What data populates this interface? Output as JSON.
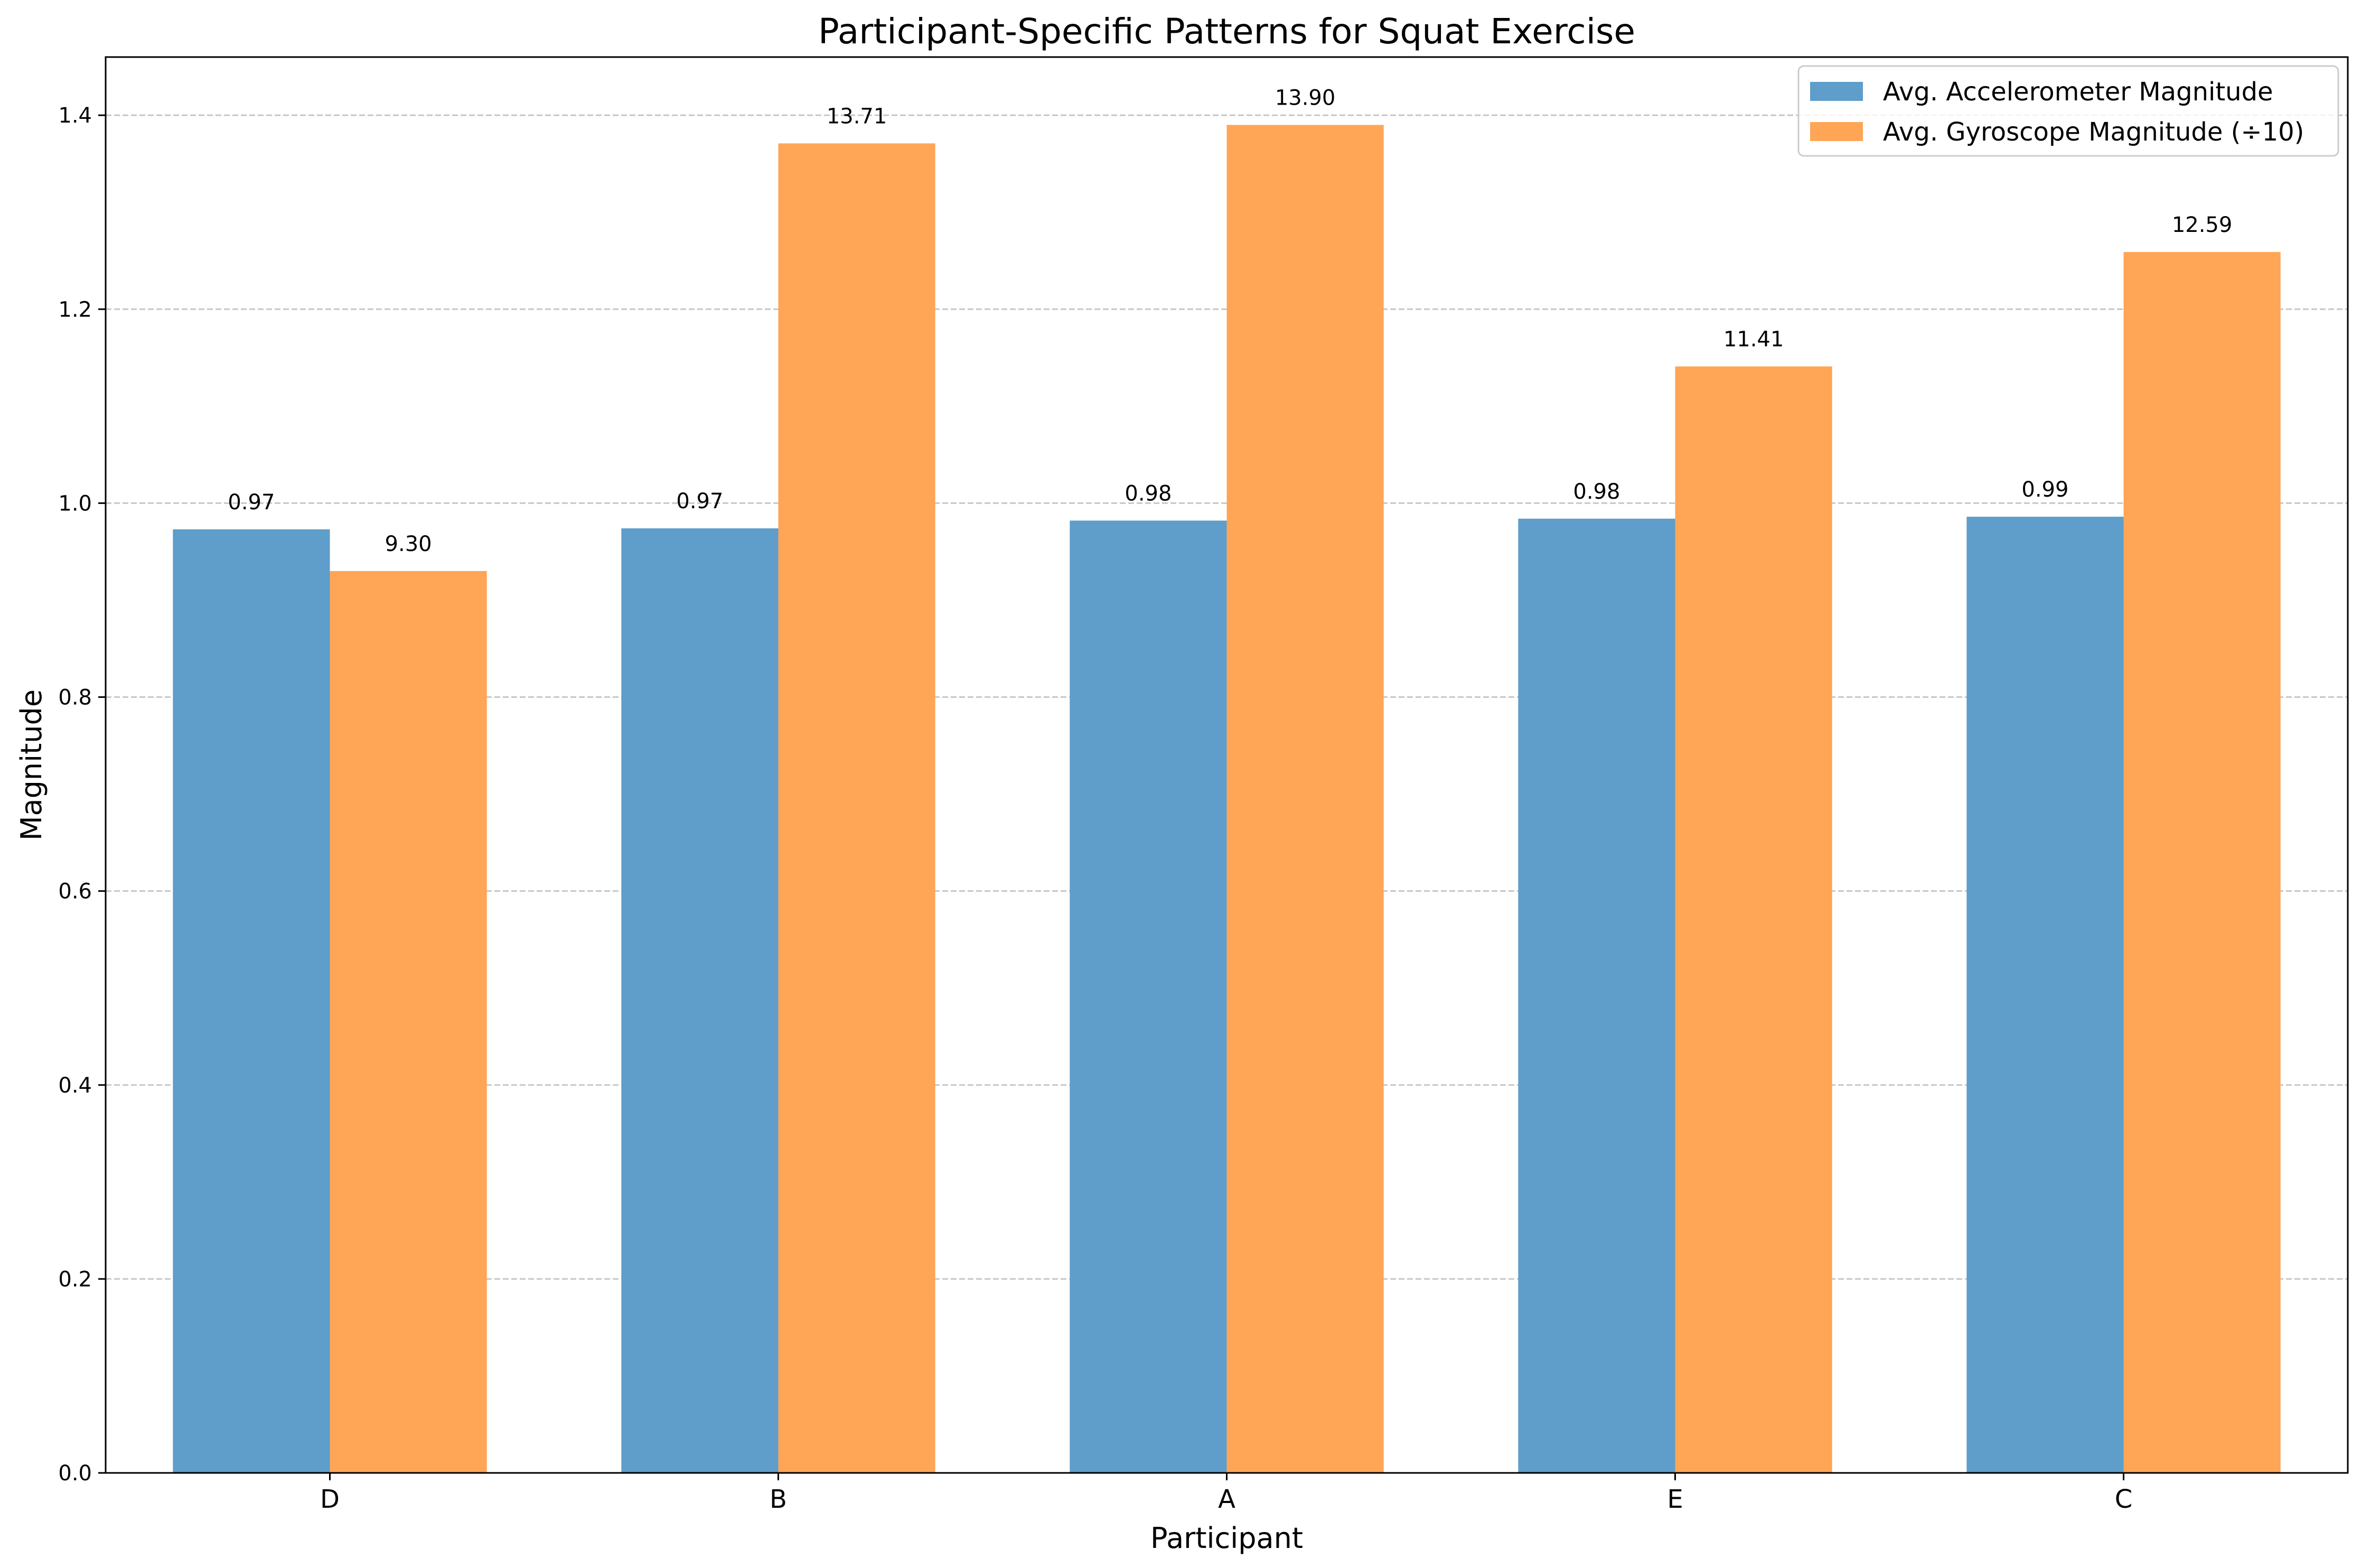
{
  "chart_data": {
    "type": "bar",
    "title": "Participant-Specific Patterns for Squat Exercise",
    "xlabel": "Participant",
    "ylabel": "Magnitude",
    "categories": [
      "D",
      "B",
      "A",
      "E",
      "C"
    ],
    "series": [
      {
        "name": "Avg. Accelerometer Magnitude",
        "color": "#5f9dca",
        "values": [
          0.973,
          0.974,
          0.982,
          0.984,
          0.986
        ],
        "labels": [
          "0.97",
          "0.97",
          "0.98",
          "0.98",
          "0.99"
        ]
      },
      {
        "name": "Avg. Gyroscope Magnitude (÷10)",
        "color": "#ffa556",
        "values": [
          0.93,
          1.371,
          1.39,
          1.141,
          1.259
        ],
        "labels": [
          "9.30",
          "13.71",
          "13.90",
          "11.41",
          "12.59"
        ]
      }
    ],
    "ylim": [
      0,
      1.46
    ],
    "yticks": [
      0.0,
      0.2,
      0.4,
      0.6,
      0.8,
      1.0,
      1.2,
      1.4
    ],
    "ytick_labels": [
      "0.0",
      "0.2",
      "0.4",
      "0.6",
      "0.8",
      "1.0",
      "1.2",
      "1.4"
    ],
    "grid": "y-dashed",
    "legend": "top-right"
  }
}
